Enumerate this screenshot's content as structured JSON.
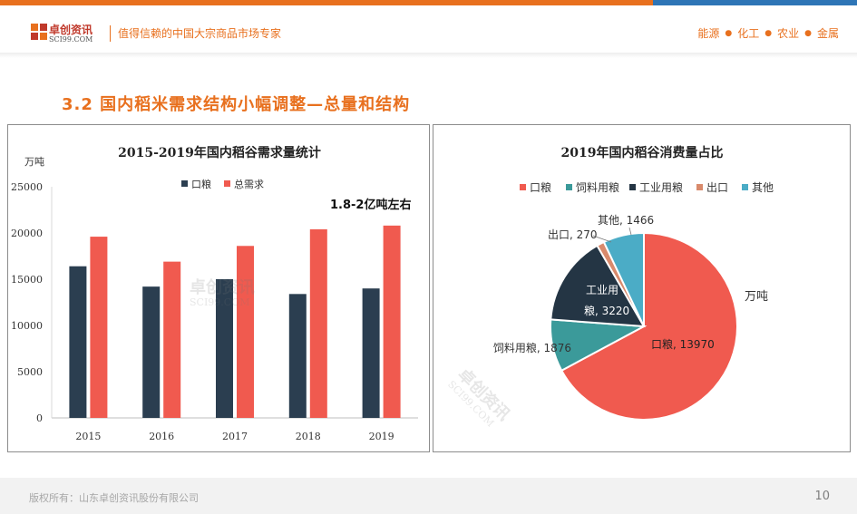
{
  "header": {
    "logo_cn": "卓创资讯",
    "logo_en": "SCI99.COM",
    "slogan": "值得信赖的中国大宗商品市场专家",
    "nav": [
      "能源",
      "化工",
      "农业",
      "金属"
    ]
  },
  "section_title": "3.2 国内稻米需求结构小幅调整—总量和结构",
  "footer": {
    "copyright": "版权所有：山东卓创资讯股份有限公司",
    "page_number": "10"
  },
  "colors": {
    "orange": "#e8701e",
    "blue": "#2e75b6",
    "series_kouliang": "#2b3e50",
    "series_total": "#f05a4f",
    "pie_siliao": "#3b9a9a",
    "pie_gongye": "#243544",
    "pie_chukou": "#d98a6c",
    "pie_qita": "#4bacc6"
  },
  "chart_data": [
    {
      "type": "bar",
      "title": "2015-2019年国内稻谷需求量统计",
      "ylabel": "万吨",
      "categories": [
        "2015",
        "2016",
        "2017",
        "2018",
        "2019"
      ],
      "series": [
        {
          "name": "口粮",
          "values": [
            16400,
            14200,
            15000,
            13400,
            14000
          ]
        },
        {
          "name": "总需求",
          "values": [
            19600,
            16900,
            18600,
            20400,
            20800
          ]
        }
      ],
      "ylim": [
        0,
        25000
      ],
      "yticks": [
        "0",
        "5000",
        "10000",
        "15000",
        "20000",
        "25000"
      ],
      "annotation": "1.8-2亿吨左右",
      "legend": "top-center",
      "grid": false
    },
    {
      "type": "pie",
      "title": "2019年国内稻谷消费量占比",
      "unit_label": "万吨",
      "slices": [
        {
          "name": "口粮",
          "value": 13970,
          "label": "口粮, 13970"
        },
        {
          "name": "饲料用粮",
          "value": 1876,
          "label": "饲料用粮, 1876"
        },
        {
          "name": "工业用粮",
          "value": 3220,
          "label_lines": [
            "工业用",
            "粮, 3220"
          ]
        },
        {
          "name": "出口",
          "value": 270,
          "label": "出口, 270"
        },
        {
          "name": "其他",
          "value": 1466,
          "label": "其他, 1466"
        }
      ],
      "legend": "top"
    }
  ]
}
